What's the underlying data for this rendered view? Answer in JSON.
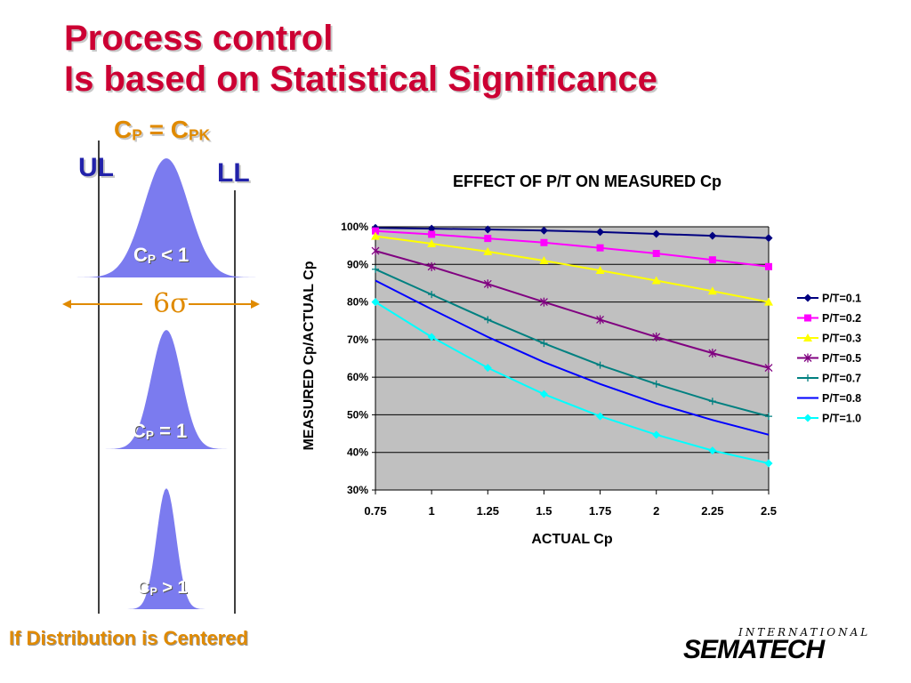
{
  "slide": {
    "title_line1": "Process control",
    "title_line2": "Is based on Statistical Significance",
    "cp_eq": {
      "c1": "C",
      "s1": "P",
      "mid": " = C",
      "s2": "PK"
    },
    "ul": "UL",
    "ll": "LL",
    "six_sigma": "6σ",
    "curve_labels": [
      {
        "c": "C",
        "sub": "P",
        "rest": " < 1"
      },
      {
        "c": "C",
        "sub": "P",
        "rest": " = 1"
      },
      {
        "c": "C",
        "sub": "P",
        "rest": " > 1"
      }
    ],
    "footer": "If Distribution is Centered",
    "logo_top": "INTERNATIONAL",
    "logo_main": "SEMATECH"
  },
  "colors": {
    "title": "#cc0033",
    "accent": "#e08a00",
    "limit_labels": "#2222aa",
    "curve_fill": "#7b7bef",
    "plot_bg": "#c0c0c0"
  },
  "chart_data": {
    "type": "line",
    "title": "EFFECT OF P/T ON MEASURED Cp",
    "xlabel": "ACTUAL Cp",
    "ylabel": "MEASURED Cp/ACTUAL Cp",
    "x": [
      0.75,
      1,
      1.25,
      1.5,
      1.75,
      2,
      2.25,
      2.5
    ],
    "x_tick_labels": [
      "0.75",
      "1",
      "1.25",
      "1.5",
      "1.75",
      "2",
      "2.25",
      "2.5"
    ],
    "ylim": [
      30,
      100
    ],
    "y_ticks": [
      30,
      40,
      50,
      60,
      70,
      80,
      90,
      100
    ],
    "y_tick_labels": [
      "30%",
      "40%",
      "50%",
      "60%",
      "70%",
      "80%",
      "90%",
      "100%"
    ],
    "grid": true,
    "legend_position": "right",
    "series": [
      {
        "name": "P/T=0.1",
        "color": "#000080",
        "marker": "diamond",
        "values": [
          99.7,
          99.5,
          99.3,
          99.0,
          98.6,
          98.1,
          97.6,
          97.0
        ]
      },
      {
        "name": "P/T=0.2",
        "color": "#ff00ff",
        "marker": "square",
        "values": [
          98.9,
          98.0,
          96.9,
          95.8,
          94.4,
          92.9,
          91.2,
          89.4
        ]
      },
      {
        "name": "P/T=0.3",
        "color": "#ffff00",
        "marker": "triangle",
        "values": [
          97.5,
          95.5,
          93.4,
          91.0,
          88.4,
          85.7,
          82.9,
          80.0
        ]
      },
      {
        "name": "P/T=0.5",
        "color": "#800080",
        "marker": "x",
        "values": [
          93.6,
          89.4,
          84.8,
          80.0,
          75.3,
          70.7,
          66.4,
          62.5
        ]
      },
      {
        "name": "P/T=0.7",
        "color": "#008080",
        "marker": "plus",
        "values": [
          88.7,
          82.0,
          75.3,
          69.0,
          63.2,
          58.2,
          53.6,
          49.6
        ]
      },
      {
        "name": "P/T=0.8",
        "color": "#0000ff",
        "marker": "none",
        "values": [
          85.7,
          78.1,
          70.7,
          64.0,
          58.2,
          53.0,
          48.6,
          44.7
        ]
      },
      {
        "name": "P/T=1.0",
        "color": "#00ffff",
        "marker": "diamond",
        "values": [
          80.0,
          70.7,
          62.5,
          55.5,
          49.6,
          44.7,
          40.5,
          37.1
        ]
      }
    ]
  }
}
